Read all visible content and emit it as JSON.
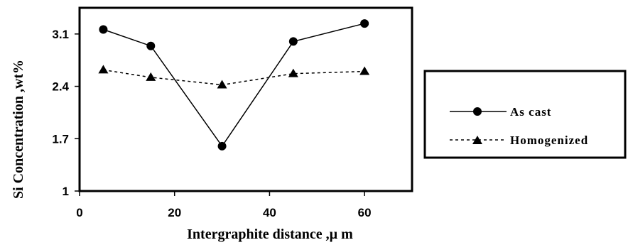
{
  "chart_data": {
    "type": "line",
    "xlabel": "Intergraphite distance ,µ m",
    "ylabel": "Si Concentration ,wt%",
    "xlim": [
      0,
      70
    ],
    "ylim": [
      1,
      3.45
    ],
    "x_ticks": [
      0,
      20,
      40,
      60
    ],
    "x_tick_labels": [
      "0",
      "20",
      "40",
      "60"
    ],
    "y_ticks": [
      1,
      1.7,
      2.4,
      3.1
    ],
    "y_tick_labels": [
      "1",
      "1.7",
      "2.4",
      "3.1"
    ],
    "grid": false,
    "legend_position": "right",
    "x": [
      5,
      15,
      30,
      45,
      60
    ],
    "series": [
      {
        "name": "As cast",
        "values": [
          3.16,
          2.94,
          1.6,
          3.0,
          3.24
        ],
        "marker": "circle",
        "line": "solid",
        "color": "#000000"
      },
      {
        "name": "Homogenized",
        "values": [
          2.62,
          2.52,
          2.42,
          2.57,
          2.6
        ],
        "marker": "triangle",
        "line": "dotted",
        "color": "#000000"
      }
    ]
  }
}
